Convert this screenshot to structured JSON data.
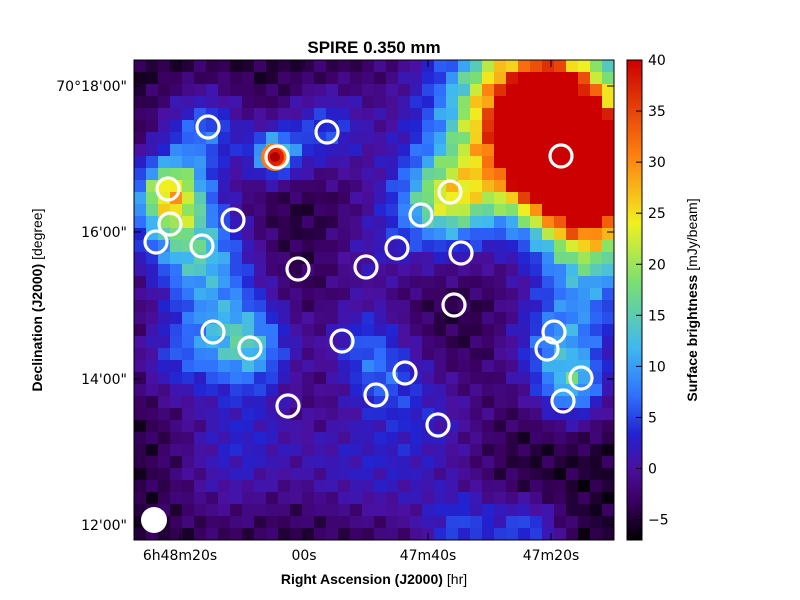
{
  "chart_data": {
    "type": "heatmap",
    "title": "SPIRE 0.350 mm",
    "xlabel": {
      "main": "Right Ascension (J2000)",
      "unit": "[hr]"
    },
    "ylabel": {
      "main": "Declination (J2000)",
      "unit": "[degree]"
    },
    "x_ticks": [
      "6h48m20s",
      "00s",
      "47m40s",
      "47m20s"
    ],
    "y_ticks": [
      "70°18'00\"",
      "16'00\"",
      "14'00\"",
      "12'00\""
    ],
    "colorbar": {
      "label": {
        "main": "Surface brightness",
        "unit": "[mJy/beam]"
      },
      "ticks": [
        "40",
        "35",
        "30",
        "25",
        "20",
        "15",
        "10",
        "5",
        "0",
        "−5"
      ],
      "range": [
        -7,
        40
      ],
      "colormap": [
        "#000000",
        "#3a0060",
        "#4a10a0",
        "#2222d0",
        "#2f6fff",
        "#3fb8f0",
        "#7be070",
        "#f0f020",
        "#ff8010",
        "#cc0000"
      ]
    },
    "ring_color": "#ffffff",
    "beam_marker": "white filled circle, bottom-left"
  }
}
